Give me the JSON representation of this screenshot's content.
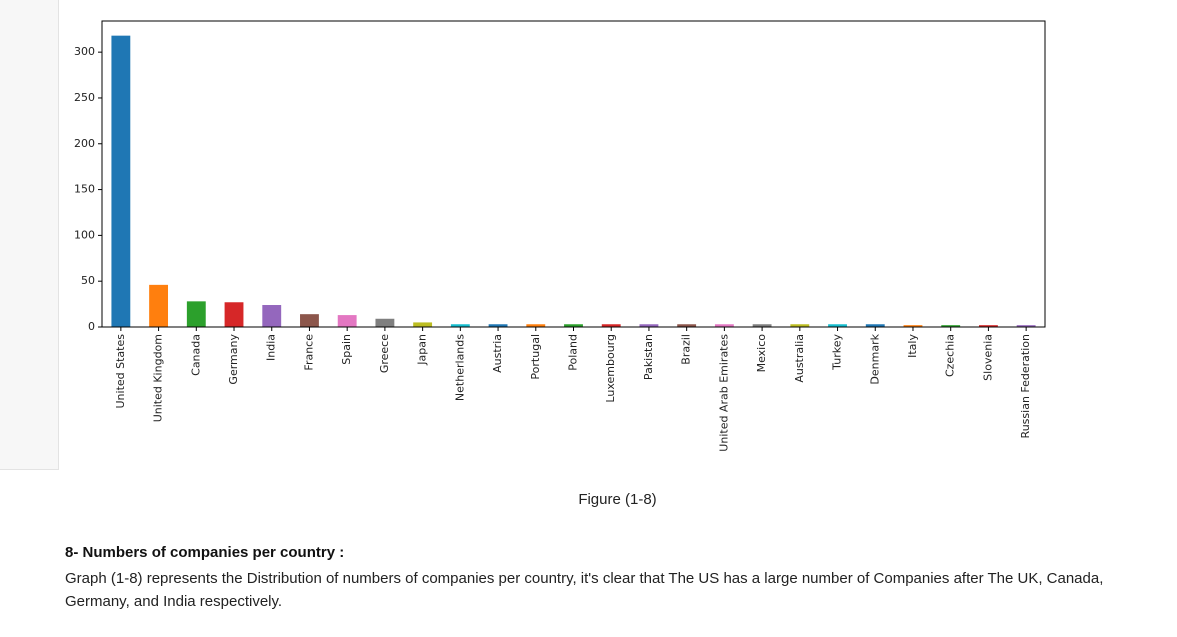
{
  "chart_data": {
    "type": "bar",
    "categories": [
      "United States",
      "United Kingdom",
      "Canada",
      "Germany",
      "India",
      "France",
      "Spain",
      "Greece",
      "Japan",
      "Netherlands",
      "Austria",
      "Portugal",
      "Poland",
      "Luxembourg",
      "Pakistan",
      "Brazil",
      "United Arab Emirates",
      "Mexico",
      "Australia",
      "Turkey",
      "Denmark",
      "Italy",
      "Czechia",
      "Slovenia",
      "Russian Federation"
    ],
    "values": [
      318,
      46,
      28,
      27,
      24,
      14,
      13,
      9,
      5,
      3,
      3,
      3,
      3,
      3,
      3,
      3,
      3,
      3,
      3,
      3,
      3,
      2,
      2,
      2,
      2
    ],
    "colors": [
      "#1f77b4",
      "#ff7f0e",
      "#2ca02c",
      "#d62728",
      "#9467bd",
      "#8c564b",
      "#e377c2",
      "#7f7f7f",
      "#bcbd22",
      "#17becf",
      "#1f77b4",
      "#ff7f0e",
      "#2ca02c",
      "#d62728",
      "#9467bd",
      "#8c564b",
      "#e377c2",
      "#7f7f7f",
      "#bcbd22",
      "#17becf",
      "#1f77b4",
      "#ff7f0e",
      "#2ca02c",
      "#d62728",
      "#9467bd"
    ],
    "yticks": [
      0,
      50,
      100,
      150,
      200,
      250,
      300
    ],
    "ylim": [
      0,
      334
    ],
    "title": "",
    "xlabel": "",
    "ylabel": "",
    "grid": false,
    "legend": false
  },
  "figure": {
    "caption": "Figure (1-8)"
  },
  "section": {
    "heading": "8- Numbers of companies per country :",
    "body": "Graph (1-8) represents the Distribution of numbers of companies per country, it's clear that The US has a large number of Companies after The UK, Canada, Germany, and India respectively."
  }
}
